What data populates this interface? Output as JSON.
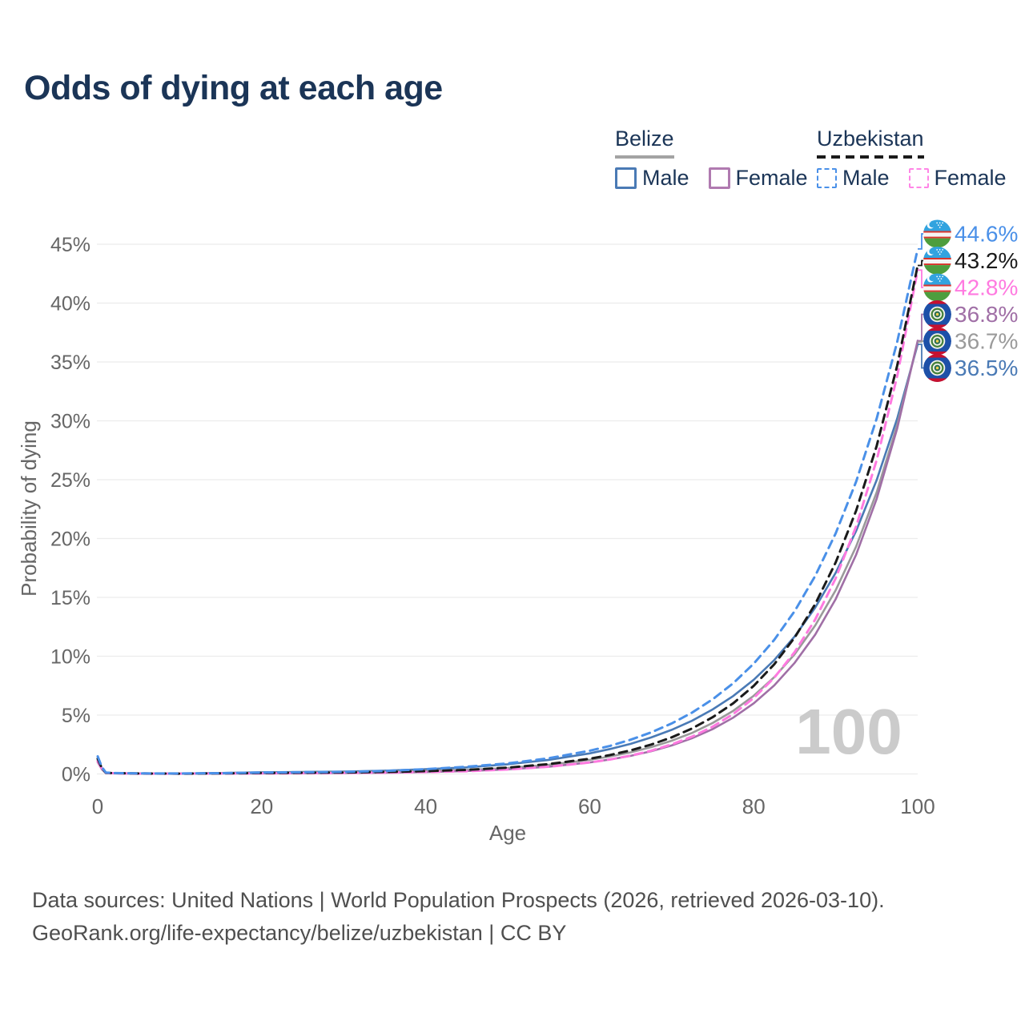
{
  "title": "Odds of dying at each age",
  "legend": {
    "groups": [
      {
        "name": "Belize",
        "line_style": "solid",
        "underline_color": "#a3a3a3",
        "items": [
          {
            "label": "Male",
            "color": "#4a7ab5"
          },
          {
            "label": "Female",
            "color": "#b07ab0"
          }
        ]
      },
      {
        "name": "Uzbekistan",
        "line_style": "dashed",
        "underline_color": "#1a1a1a",
        "items": [
          {
            "label": "Male",
            "color": "#4a90e8"
          },
          {
            "label": "Female",
            "color": "#ff85e6"
          }
        ]
      }
    ]
  },
  "chart_data": {
    "type": "line",
    "title": "Odds of dying at each age",
    "xlabel": "Age",
    "ylabel": "Probability of dying",
    "xlim": [
      0,
      100
    ],
    "ylim": [
      0,
      45
    ],
    "x_ticks": [
      0,
      20,
      40,
      60,
      80,
      100
    ],
    "y_ticks": [
      0,
      5,
      10,
      15,
      20,
      25,
      30,
      35,
      40,
      45
    ],
    "y_tick_suffix": "%",
    "grid": "horizontal",
    "watermark": "100",
    "axis_text_color": "#666666",
    "grid_color": "#ececec",
    "watermark_color": "#cbcbcb",
    "series": [
      {
        "name": "uzbekistan-male",
        "country": "Uzbekistan",
        "sex": "Male",
        "line_style": "dashed",
        "color": "#4a90e8",
        "flag": "uz",
        "end_label": "44.6%",
        "end_value": 44.6,
        "points": [
          [
            0,
            1.5
          ],
          [
            0.5,
            0.6
          ],
          [
            1,
            0.12
          ],
          [
            2,
            0.08
          ],
          [
            5,
            0.05
          ],
          [
            10,
            0.04
          ],
          [
            15,
            0.07
          ],
          [
            20,
            0.12
          ],
          [
            25,
            0.15
          ],
          [
            30,
            0.18
          ],
          [
            35,
            0.25
          ],
          [
            40,
            0.41
          ],
          [
            45,
            0.61
          ],
          [
            50,
            0.9
          ],
          [
            55,
            1.33
          ],
          [
            60,
            1.97
          ],
          [
            62.5,
            2.39
          ],
          [
            65,
            2.91
          ],
          [
            67.5,
            3.53
          ],
          [
            70,
            4.29
          ],
          [
            72.5,
            5.22
          ],
          [
            75,
            6.35
          ],
          [
            77.5,
            7.71
          ],
          [
            80,
            9.37
          ],
          [
            82.5,
            11.39
          ],
          [
            85,
            13.84
          ],
          [
            87.5,
            16.82
          ],
          [
            90,
            20.44
          ],
          [
            92.5,
            24.85
          ],
          [
            95,
            30.2
          ],
          [
            97.5,
            36.7
          ],
          [
            100,
            44.6
          ]
        ]
      },
      {
        "name": "uzbekistan-both",
        "country": "Uzbekistan",
        "sex": "Both",
        "line_style": "dashed",
        "color": "#1a1a1a",
        "flag": "uz",
        "end_label": "43.2%",
        "end_value": 43.2,
        "points": [
          [
            0,
            1.3
          ],
          [
            0.5,
            0.5
          ],
          [
            1,
            0.1
          ],
          [
            2,
            0.07
          ],
          [
            5,
            0.04
          ],
          [
            10,
            0.03
          ],
          [
            15,
            0.05
          ],
          [
            20,
            0.08
          ],
          [
            25,
            0.1
          ],
          [
            30,
            0.12
          ],
          [
            35,
            0.17
          ],
          [
            40,
            0.24
          ],
          [
            45,
            0.35
          ],
          [
            50,
            0.54
          ],
          [
            55,
            0.84
          ],
          [
            60,
            1.29
          ],
          [
            62.5,
            1.61
          ],
          [
            65,
            2.01
          ],
          [
            67.5,
            2.5
          ],
          [
            70,
            3.11
          ],
          [
            72.5,
            3.87
          ],
          [
            75,
            4.82
          ],
          [
            77.5,
            6.0
          ],
          [
            80,
            7.48
          ],
          [
            82.5,
            9.31
          ],
          [
            85,
            11.59
          ],
          [
            87.5,
            14.43
          ],
          [
            90,
            17.97
          ],
          [
            92.5,
            22.38
          ],
          [
            95,
            27.87
          ],
          [
            97.5,
            34.69
          ],
          [
            100,
            43.2
          ]
        ]
      },
      {
        "name": "uzbekistan-female",
        "country": "Uzbekistan",
        "sex": "Female",
        "line_style": "dashed",
        "color": "#ff7ae0",
        "flag": "uz",
        "end_label": "42.8%",
        "end_value": 42.8,
        "points": [
          [
            0,
            1.1
          ],
          [
            0.5,
            0.45
          ],
          [
            1,
            0.09
          ],
          [
            2,
            0.06
          ],
          [
            5,
            0.03
          ],
          [
            10,
            0.03
          ],
          [
            15,
            0.04
          ],
          [
            20,
            0.05
          ],
          [
            25,
            0.06
          ],
          [
            30,
            0.08
          ],
          [
            35,
            0.11
          ],
          [
            40,
            0.16
          ],
          [
            45,
            0.23
          ],
          [
            50,
            0.38
          ],
          [
            55,
            0.61
          ],
          [
            60,
            0.97
          ],
          [
            62.5,
            1.23
          ],
          [
            65,
            1.56
          ],
          [
            67.5,
            1.98
          ],
          [
            70,
            2.51
          ],
          [
            72.5,
            3.18
          ],
          [
            75,
            4.02
          ],
          [
            77.5,
            5.09
          ],
          [
            80,
            6.45
          ],
          [
            82.5,
            8.17
          ],
          [
            85,
            10.36
          ],
          [
            87.5,
            13.12
          ],
          [
            90,
            16.62
          ],
          [
            92.5,
            21.05
          ],
          [
            95,
            26.67
          ],
          [
            97.5,
            33.79
          ],
          [
            100,
            42.8
          ]
        ]
      },
      {
        "name": "belize-female",
        "country": "Belize",
        "sex": "Female",
        "line_style": "solid",
        "color": "#a06fa6",
        "flag": "bz",
        "end_label": "36.8%",
        "end_value": 36.8,
        "points": [
          [
            0,
            1.0
          ],
          [
            0.5,
            0.4
          ],
          [
            1,
            0.08
          ],
          [
            2,
            0.05
          ],
          [
            5,
            0.03
          ],
          [
            10,
            0.02
          ],
          [
            15,
            0.04
          ],
          [
            20,
            0.05
          ],
          [
            25,
            0.06
          ],
          [
            30,
            0.08
          ],
          [
            35,
            0.11
          ],
          [
            40,
            0.16
          ],
          [
            45,
            0.25
          ],
          [
            50,
            0.39
          ],
          [
            55,
            0.62
          ],
          [
            60,
            0.98
          ],
          [
            62.5,
            1.23
          ],
          [
            65,
            1.54
          ],
          [
            67.5,
            1.93
          ],
          [
            70,
            2.42
          ],
          [
            72.5,
            3.04
          ],
          [
            75,
            3.81
          ],
          [
            77.5,
            4.78
          ],
          [
            80,
            6.0
          ],
          [
            82.5,
            7.52
          ],
          [
            85,
            9.44
          ],
          [
            87.5,
            11.84
          ],
          [
            90,
            14.86
          ],
          [
            92.5,
            18.64
          ],
          [
            95,
            23.38
          ],
          [
            97.5,
            29.35
          ],
          [
            100,
            36.8
          ]
        ]
      },
      {
        "name": "belize-both",
        "country": "Belize",
        "sex": "Both",
        "line_style": "solid",
        "color": "#9a9a9a",
        "flag": "bz",
        "end_label": "36.7%",
        "end_value": 36.7,
        "points": [
          [
            0,
            1.2
          ],
          [
            0.5,
            0.48
          ],
          [
            1,
            0.1
          ],
          [
            2,
            0.06
          ],
          [
            5,
            0.04
          ],
          [
            10,
            0.03
          ],
          [
            15,
            0.06
          ],
          [
            20,
            0.1
          ],
          [
            25,
            0.12
          ],
          [
            30,
            0.14
          ],
          [
            35,
            0.19
          ],
          [
            40,
            0.27
          ],
          [
            45,
            0.33
          ],
          [
            50,
            0.51
          ],
          [
            55,
            0.78
          ],
          [
            60,
            1.2
          ],
          [
            62.5,
            1.49
          ],
          [
            65,
            1.84
          ],
          [
            67.5,
            2.28
          ],
          [
            70,
            2.82
          ],
          [
            72.5,
            3.49
          ],
          [
            75,
            4.33
          ],
          [
            77.5,
            5.36
          ],
          [
            80,
            6.64
          ],
          [
            82.5,
            8.22
          ],
          [
            85,
            10.18
          ],
          [
            87.5,
            12.61
          ],
          [
            90,
            15.61
          ],
          [
            92.5,
            19.33
          ],
          [
            95,
            23.93
          ],
          [
            97.5,
            29.64
          ],
          [
            100,
            36.7
          ]
        ]
      },
      {
        "name": "belize-male",
        "country": "Belize",
        "sex": "Male",
        "line_style": "solid",
        "color": "#4a7ab5",
        "flag": "bz",
        "end_label": "36.5%",
        "end_value": 36.5,
        "points": [
          [
            0,
            1.3
          ],
          [
            0.5,
            0.5
          ],
          [
            1,
            0.11
          ],
          [
            2,
            0.07
          ],
          [
            5,
            0.05
          ],
          [
            10,
            0.04
          ],
          [
            15,
            0.08
          ],
          [
            20,
            0.14
          ],
          [
            25,
            0.17
          ],
          [
            30,
            0.2
          ],
          [
            35,
            0.28
          ],
          [
            40,
            0.4
          ],
          [
            45,
            0.56
          ],
          [
            50,
            0.82
          ],
          [
            55,
            1.2
          ],
          [
            60,
            1.75
          ],
          [
            62.5,
            2.12
          ],
          [
            65,
            2.56
          ],
          [
            67.5,
            3.1
          ],
          [
            70,
            3.75
          ],
          [
            72.5,
            4.53
          ],
          [
            75,
            5.48
          ],
          [
            77.5,
            6.62
          ],
          [
            80,
            8.0
          ],
          [
            82.5,
            9.67
          ],
          [
            85,
            11.69
          ],
          [
            87.5,
            14.13
          ],
          [
            90,
            17.09
          ],
          [
            92.5,
            20.66
          ],
          [
            95,
            24.97
          ],
          [
            97.5,
            30.19
          ],
          [
            100,
            36.5
          ]
        ]
      }
    ]
  },
  "footer": {
    "line1": "Data sources: United Nations | World Population Prospects (2026, retrieved 2026-03-10).",
    "line2": "GeoRank.org/life-expectancy/belize/uzbekistan | CC BY"
  }
}
